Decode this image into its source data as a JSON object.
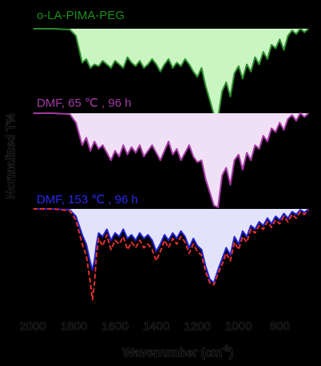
{
  "chart_data": {
    "type": "area",
    "xlabel": "Wavenumber (cm",
    "xlabel_sup": "-1",
    "xlabel_end": ")",
    "ylabel": "Normalized T%",
    "xlim": [
      2000,
      650
    ],
    "x_reversed": true,
    "xticks": [
      2000,
      1800,
      1600,
      1400,
      1200,
      1000,
      800
    ],
    "y_ticks_shown": false,
    "panels": [
      {
        "label": "o-LA-PIMA-PEG",
        "label_color": "#1a8f1a",
        "line_color": "#2e8b2e",
        "fill_color": "#c8f5c0",
        "baseline": 1.0,
        "x": [
          2000,
          1900,
          1820,
          1790,
          1760,
          1740,
          1720,
          1700,
          1680,
          1660,
          1640,
          1620,
          1600,
          1580,
          1560,
          1540,
          1520,
          1500,
          1480,
          1460,
          1440,
          1420,
          1400,
          1380,
          1360,
          1340,
          1320,
          1300,
          1280,
          1260,
          1240,
          1220,
          1200,
          1180,
          1160,
          1140,
          1120,
          1100,
          1080,
          1060,
          1040,
          1020,
          1000,
          980,
          960,
          940,
          920,
          900,
          880,
          860,
          840,
          820,
          800,
          780,
          760,
          740,
          720,
          700,
          680,
          660
        ],
        "y": [
          1.0,
          1.0,
          0.99,
          0.92,
          0.62,
          0.66,
          0.56,
          0.6,
          0.58,
          0.64,
          0.6,
          0.56,
          0.64,
          0.6,
          0.56,
          0.68,
          0.62,
          0.58,
          0.64,
          0.56,
          0.6,
          0.66,
          0.6,
          0.52,
          0.6,
          0.66,
          0.56,
          0.62,
          0.58,
          0.66,
          0.6,
          0.52,
          0.46,
          0.56,
          0.36,
          0.2,
          0.04,
          0.0,
          0.3,
          0.4,
          0.24,
          0.5,
          0.58,
          0.44,
          0.6,
          0.52,
          0.68,
          0.6,
          0.74,
          0.66,
          0.82,
          0.78,
          0.88,
          0.76,
          0.92,
          0.98,
          0.94,
          1.0,
          0.96,
          1.0
        ]
      },
      {
        "label": "DMF, 65 ℃ , 96 h",
        "label_color": "#a23aa3",
        "line_color": "#a63aa6",
        "fill_color": "#f0e0f5",
        "baseline": 1.0,
        "x": [
          2000,
          1900,
          1820,
          1790,
          1760,
          1740,
          1720,
          1700,
          1680,
          1660,
          1640,
          1620,
          1600,
          1580,
          1560,
          1540,
          1520,
          1500,
          1480,
          1460,
          1440,
          1420,
          1400,
          1380,
          1360,
          1340,
          1320,
          1300,
          1280,
          1260,
          1240,
          1220,
          1200,
          1180,
          1160,
          1140,
          1120,
          1100,
          1080,
          1060,
          1040,
          1020,
          1000,
          980,
          960,
          940,
          920,
          900,
          880,
          860,
          840,
          820,
          800,
          780,
          760,
          740,
          720,
          700,
          680,
          660
        ],
        "y": [
          1.0,
          1.0,
          0.99,
          0.9,
          0.66,
          0.74,
          0.6,
          0.7,
          0.62,
          0.66,
          0.58,
          0.5,
          0.6,
          0.54,
          0.66,
          0.56,
          0.64,
          0.58,
          0.66,
          0.54,
          0.6,
          0.66,
          0.58,
          0.5,
          0.6,
          0.7,
          0.56,
          0.62,
          0.5,
          0.58,
          0.66,
          0.54,
          0.48,
          0.5,
          0.3,
          0.16,
          0.02,
          0.0,
          0.34,
          0.42,
          0.24,
          0.5,
          0.56,
          0.4,
          0.58,
          0.5,
          0.66,
          0.62,
          0.76,
          0.7,
          0.84,
          0.8,
          0.9,
          0.82,
          0.94,
          0.98,
          0.92,
          1.0,
          0.96,
          1.0
        ]
      },
      {
        "label": "DMF, 153 ℃ , 96 h",
        "label_color": "#2a2aee",
        "line_color": "#2222cc",
        "fill_color": "#e2e2fb",
        "second_line_color": "#e03030",
        "baseline": 1.0,
        "x": [
          2000,
          1900,
          1820,
          1790,
          1760,
          1740,
          1720,
          1710,
          1700,
          1690,
          1680,
          1660,
          1640,
          1620,
          1600,
          1580,
          1560,
          1540,
          1520,
          1500,
          1480,
          1460,
          1440,
          1420,
          1400,
          1380,
          1360,
          1340,
          1320,
          1300,
          1280,
          1260,
          1240,
          1220,
          1200,
          1180,
          1160,
          1140,
          1120,
          1100,
          1080,
          1060,
          1040,
          1020,
          1000,
          980,
          960,
          940,
          920,
          900,
          880,
          860,
          840,
          820,
          800,
          780,
          760,
          740,
          720,
          700,
          680,
          660
        ],
        "y": [
          1.0,
          1.0,
          0.99,
          0.92,
          0.72,
          0.62,
          0.42,
          0.34,
          0.44,
          0.62,
          0.74,
          0.7,
          0.78,
          0.66,
          0.74,
          0.7,
          0.78,
          0.68,
          0.72,
          0.66,
          0.74,
          0.68,
          0.72,
          0.66,
          0.54,
          0.62,
          0.72,
          0.66,
          0.74,
          0.68,
          0.76,
          0.7,
          0.58,
          0.68,
          0.6,
          0.56,
          0.38,
          0.24,
          0.2,
          0.34,
          0.46,
          0.58,
          0.5,
          0.7,
          0.62,
          0.76,
          0.7,
          0.82,
          0.78,
          0.86,
          0.82,
          0.9,
          0.84,
          0.92,
          0.88,
          0.95,
          0.9,
          0.97,
          0.94,
          0.99,
          0.96,
          1.0
        ],
        "y2": [
          1.0,
          1.0,
          0.98,
          0.88,
          0.62,
          0.5,
          0.2,
          0.02,
          0.2,
          0.5,
          0.68,
          0.6,
          0.72,
          0.56,
          0.66,
          0.62,
          0.7,
          0.56,
          0.64,
          0.58,
          0.66,
          0.58,
          0.62,
          0.56,
          0.44,
          0.54,
          0.66,
          0.58,
          0.68,
          0.62,
          0.7,
          0.64,
          0.52,
          0.62,
          0.54,
          0.5,
          0.32,
          0.2,
          0.18,
          0.3,
          0.4,
          0.52,
          0.44,
          0.64,
          0.56,
          0.7,
          0.64,
          0.78,
          0.74,
          0.82,
          0.78,
          0.86,
          0.8,
          0.88,
          0.84,
          0.92,
          0.86,
          0.94,
          0.9,
          0.97,
          0.94,
          0.99
        ]
      }
    ]
  }
}
